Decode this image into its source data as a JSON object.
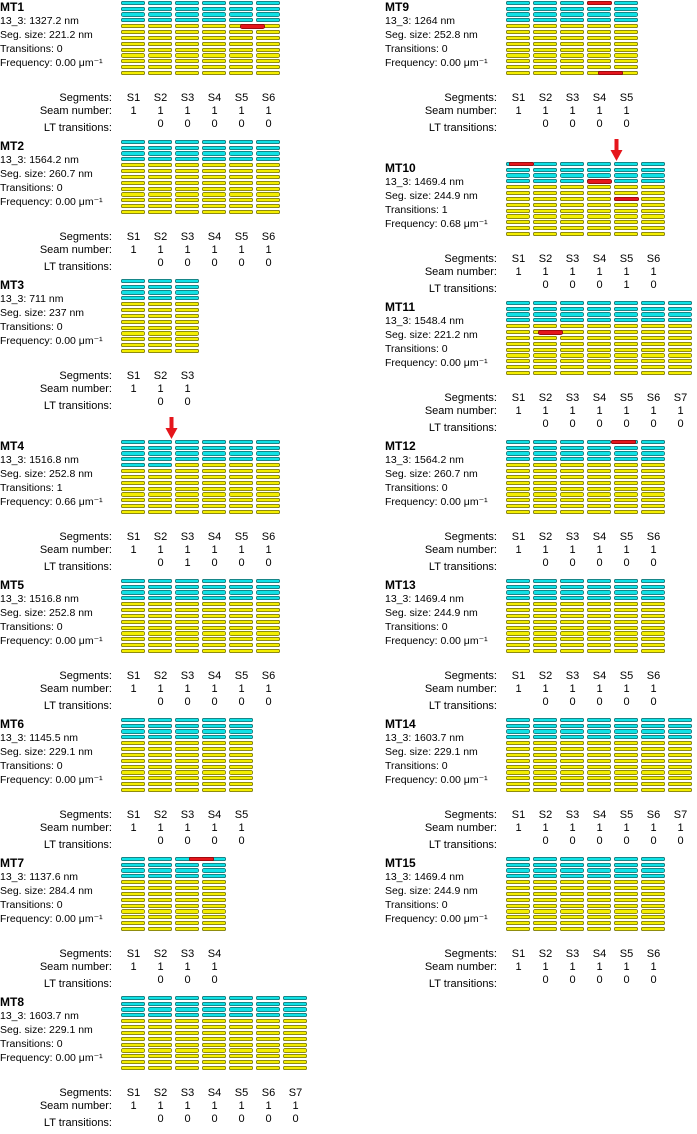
{
  "colors": {
    "cyan": "#10e2e6",
    "yellow": "#f4ee00",
    "red": "#e5161c"
  },
  "labels": {
    "segments": "Segments:",
    "seam": "Seam number:",
    "lt": "LT transitions:"
  },
  "panels": [
    {
      "id": "MT1",
      "column": "left",
      "lattice": "13_3: 1327.2 nm",
      "seg_size": "Seg. size: 221.2 nm",
      "transitions": "Transitions: 0",
      "frequency": "Frequency: 0.00 μm⁻¹",
      "segments": [
        "S1",
        "S2",
        "S3",
        "S4",
        "S5",
        "S6"
      ],
      "seam_numbers": [
        "1",
        "1",
        "1",
        "1",
        "1",
        "1"
      ],
      "lt_transitions": [
        "0",
        "0",
        "0",
        "0",
        "0"
      ],
      "grid": {
        "cols": 6,
        "rows": 13,
        "cyan_rows": 4,
        "red_marks": [
          {
            "row": 4,
            "col": 4.4
          }
        ],
        "arrow_col": null
      }
    },
    {
      "id": "MT2",
      "column": "left",
      "lattice": "13_3: 1564.2 nm",
      "seg_size": "Seg. size: 260.7 nm",
      "transitions": "Transitions: 0",
      "frequency": "Frequency: 0.00 μm⁻¹",
      "segments": [
        "S1",
        "S2",
        "S3",
        "S4",
        "S5",
        "S6"
      ],
      "seam_numbers": [
        "1",
        "1",
        "1",
        "1",
        "1",
        "1"
      ],
      "lt_transitions": [
        "0",
        "0",
        "0",
        "0",
        "0"
      ],
      "grid": {
        "cols": 6,
        "rows": 13,
        "cyan_rows": 4,
        "red_marks": [],
        "arrow_col": null
      }
    },
    {
      "id": "MT3",
      "column": "left",
      "lattice": "13_3: 711 nm",
      "seg_size": "Seg. size: 237 nm",
      "transitions": "Transitions: 0",
      "frequency": "Frequency: 0.00 μm⁻¹",
      "segments": [
        "S1",
        "S2",
        "S3"
      ],
      "seam_numbers": [
        "1",
        "1",
        "1"
      ],
      "lt_transitions": [
        "0",
        "0"
      ],
      "grid": {
        "cols": 3,
        "rows": 13,
        "cyan_rows": 4,
        "red_marks": [],
        "arrow_col": null
      }
    },
    {
      "id": "MT4",
      "column": "left",
      "lattice": "13_3: 1516.8 nm",
      "seg_size": "Seg. size: 252.8 nm",
      "transitions": "Transitions: 1",
      "frequency": "Frequency: 0.66 μm⁻¹",
      "segments": [
        "S1",
        "S2",
        "S3",
        "S4",
        "S5",
        "S6"
      ],
      "seam_numbers": [
        "1",
        "1",
        "1",
        "1",
        "1",
        "1"
      ],
      "lt_transitions": [
        "0",
        "1",
        "0",
        "0",
        "0"
      ],
      "grid": {
        "cols": 6,
        "rows": 13,
        "cyan_rows": 4,
        "cyan_extra": {
          "from": 0,
          "to": 1,
          "rows": 1
        },
        "red_marks": [],
        "arrow_col": 1.9
      }
    },
    {
      "id": "MT5",
      "column": "left",
      "lattice": "13_3: 1516.8 nm",
      "seg_size": "Seg. size: 252.8 nm",
      "transitions": "Transitions: 0",
      "frequency": "Frequency: 0.00 μm⁻¹",
      "segments": [
        "S1",
        "S2",
        "S3",
        "S4",
        "S5",
        "S6"
      ],
      "seam_numbers": [
        "1",
        "1",
        "1",
        "1",
        "1",
        "1"
      ],
      "lt_transitions": [
        "0",
        "0",
        "0",
        "0",
        "0"
      ],
      "grid": {
        "cols": 6,
        "rows": 13,
        "cyan_rows": 4,
        "red_marks": [],
        "arrow_col": null
      }
    },
    {
      "id": "MT6",
      "column": "left",
      "lattice": "13_3: 1145.5 nm",
      "seg_size": "Seg. size: 229.1 nm",
      "transitions": "Transitions: 0",
      "frequency": "Frequency: 0.00 μm⁻¹",
      "segments": [
        "S1",
        "S2",
        "S3",
        "S4",
        "S5"
      ],
      "seam_numbers": [
        "1",
        "1",
        "1",
        "1",
        "1"
      ],
      "lt_transitions": [
        "0",
        "0",
        "0",
        "0"
      ],
      "grid": {
        "cols": 5,
        "rows": 13,
        "cyan_rows": 4,
        "red_marks": [],
        "arrow_col": null
      }
    },
    {
      "id": "MT7",
      "column": "left",
      "lattice": "13_3: 1137.6 nm",
      "seg_size": "Seg. size: 284.4 nm",
      "transitions": "Transitions: 0",
      "frequency": "Frequency: 0.00 μm⁻¹",
      "segments": [
        "S1",
        "S2",
        "S3",
        "S4"
      ],
      "seam_numbers": [
        "1",
        "1",
        "1",
        "1"
      ],
      "lt_transitions": [
        "0",
        "0",
        "0"
      ],
      "grid": {
        "cols": 4,
        "rows": 13,
        "cyan_rows": 4,
        "red_marks": [
          {
            "row": 0,
            "col": 2.5
          }
        ],
        "arrow_col": null
      }
    },
    {
      "id": "MT8",
      "column": "left",
      "lattice": "13_3: 1603.7 nm",
      "seg_size": "Seg. size: 229.1 nm",
      "transitions": "Transitions: 0",
      "frequency": "Frequency: 0.00 μm⁻¹",
      "segments": [
        "S1",
        "S2",
        "S3",
        "S4",
        "S5",
        "S6",
        "S7"
      ],
      "seam_numbers": [
        "1",
        "1",
        "1",
        "1",
        "1",
        "1",
        "1"
      ],
      "lt_transitions": [
        "0",
        "0",
        "0",
        "0",
        "0",
        "0"
      ],
      "grid": {
        "cols": 7,
        "rows": 13,
        "cyan_rows": 4,
        "red_marks": [],
        "arrow_col": null
      }
    },
    {
      "id": "MT9",
      "column": "right",
      "lattice": "13_3: 1264 nm",
      "seg_size": "Seg. size: 252.8 nm",
      "transitions": "Transitions: 0",
      "frequency": "Frequency: 0.00 μm⁻¹",
      "segments": [
        "S1",
        "S2",
        "S3",
        "S4",
        "S5"
      ],
      "seam_numbers": [
        "1",
        "1",
        "1",
        "1",
        "1"
      ],
      "lt_transitions": [
        "0",
        "0",
        "0",
        "0"
      ],
      "grid": {
        "cols": 5,
        "rows": 13,
        "cyan_rows": 4,
        "red_marks": [
          {
            "row": 0,
            "col": 3.0
          },
          {
            "row": 12,
            "col": 3.4
          }
        ],
        "arrow_col": null
      }
    },
    {
      "id": "MT10",
      "column": "right",
      "lattice": "13_3: 1469.4 nm",
      "seg_size": "Seg. size: 244.9 nm",
      "transitions": "Transitions: 1",
      "frequency": "Frequency: 0.68 μm⁻¹",
      "segments": [
        "S1",
        "S2",
        "S3",
        "S4",
        "S5",
        "S6"
      ],
      "seam_numbers": [
        "1",
        "1",
        "1",
        "1",
        "1",
        "1"
      ],
      "lt_transitions": [
        "0",
        "0",
        "0",
        "1",
        "0"
      ],
      "grid": {
        "cols": 6,
        "rows": 13,
        "cyan_rows": 4,
        "red_marks": [
          {
            "row": 0,
            "col": 0.1
          },
          {
            "row": 3,
            "col": 3.0
          },
          {
            "row": 6,
            "col": 4.0
          }
        ],
        "arrow_col": 4.1
      }
    },
    {
      "id": "MT11",
      "column": "right",
      "lattice": "13_3: 1548.4 nm",
      "seg_size": "Seg. size: 221.2 nm",
      "transitions": "Transitions: 0",
      "frequency": "Frequency: 0.00 μm⁻¹",
      "segments": [
        "S1",
        "S2",
        "S3",
        "S4",
        "S5",
        "S6",
        "S7"
      ],
      "seam_numbers": [
        "1",
        "1",
        "1",
        "1",
        "1",
        "1",
        "1"
      ],
      "lt_transitions": [
        "0",
        "0",
        "0",
        "0",
        "0",
        "0"
      ],
      "grid": {
        "cols": 7,
        "rows": 13,
        "cyan_rows": 4,
        "red_marks": [
          {
            "row": 5,
            "col": 1.2
          }
        ],
        "arrow_col": null
      }
    },
    {
      "id": "MT12",
      "column": "right",
      "lattice": "13_3: 1564.2 nm",
      "seg_size": "Seg. size: 260.7 nm",
      "transitions": "Transitions: 0",
      "frequency": "Frequency: 0.00 μm⁻¹",
      "segments": [
        "S1",
        "S2",
        "S3",
        "S4",
        "S5",
        "S6"
      ],
      "seam_numbers": [
        "1",
        "1",
        "1",
        "1",
        "1",
        "1"
      ],
      "lt_transitions": [
        "0",
        "0",
        "0",
        "0",
        "0"
      ],
      "grid": {
        "cols": 6,
        "rows": 13,
        "cyan_rows": 4,
        "red_marks": [
          {
            "row": 0,
            "col": 3.9
          }
        ],
        "arrow_col": null
      }
    },
    {
      "id": "MT13",
      "column": "right",
      "lattice": "13_3: 1469.4 nm",
      "seg_size": "Seg. size: 244.9 nm",
      "transitions": "Transitions: 0",
      "frequency": "Frequency: 0.00 μm⁻¹",
      "segments": [
        "S1",
        "S2",
        "S3",
        "S4",
        "S5",
        "S6"
      ],
      "seam_numbers": [
        "1",
        "1",
        "1",
        "1",
        "1",
        "1"
      ],
      "lt_transitions": [
        "0",
        "0",
        "0",
        "0",
        "0"
      ],
      "grid": {
        "cols": 6,
        "rows": 13,
        "cyan_rows": 4,
        "red_marks": [],
        "arrow_col": null
      }
    },
    {
      "id": "MT14",
      "column": "right",
      "lattice": "13_3: 1603.7 nm",
      "seg_size": "Seg. size: 229.1 nm",
      "transitions": "Transitions: 0",
      "frequency": "Frequency: 0.00 μm⁻¹",
      "segments": [
        "S1",
        "S2",
        "S3",
        "S4",
        "S5",
        "S6",
        "S7"
      ],
      "seam_numbers": [
        "1",
        "1",
        "1",
        "1",
        "1",
        "1",
        "1"
      ],
      "lt_transitions": [
        "0",
        "0",
        "0",
        "0",
        "0",
        "0"
      ],
      "grid": {
        "cols": 7,
        "rows": 13,
        "cyan_rows": 4,
        "red_marks": [],
        "arrow_col": null
      }
    },
    {
      "id": "MT15",
      "column": "right",
      "lattice": "13_3: 1469.4 nm",
      "seg_size": "Seg. size: 244.9 nm",
      "transitions": "Transitions: 0",
      "frequency": "Frequency: 0.00 μm⁻¹",
      "segments": [
        "S1",
        "S2",
        "S3",
        "S4",
        "S5",
        "S6"
      ],
      "seam_numbers": [
        "1",
        "1",
        "1",
        "1",
        "1",
        "1"
      ],
      "lt_transitions": [
        "0",
        "0",
        "0",
        "0",
        "0"
      ],
      "grid": {
        "cols": 6,
        "rows": 13,
        "cyan_rows": 4,
        "red_marks": [],
        "arrow_col": null
      }
    }
  ]
}
